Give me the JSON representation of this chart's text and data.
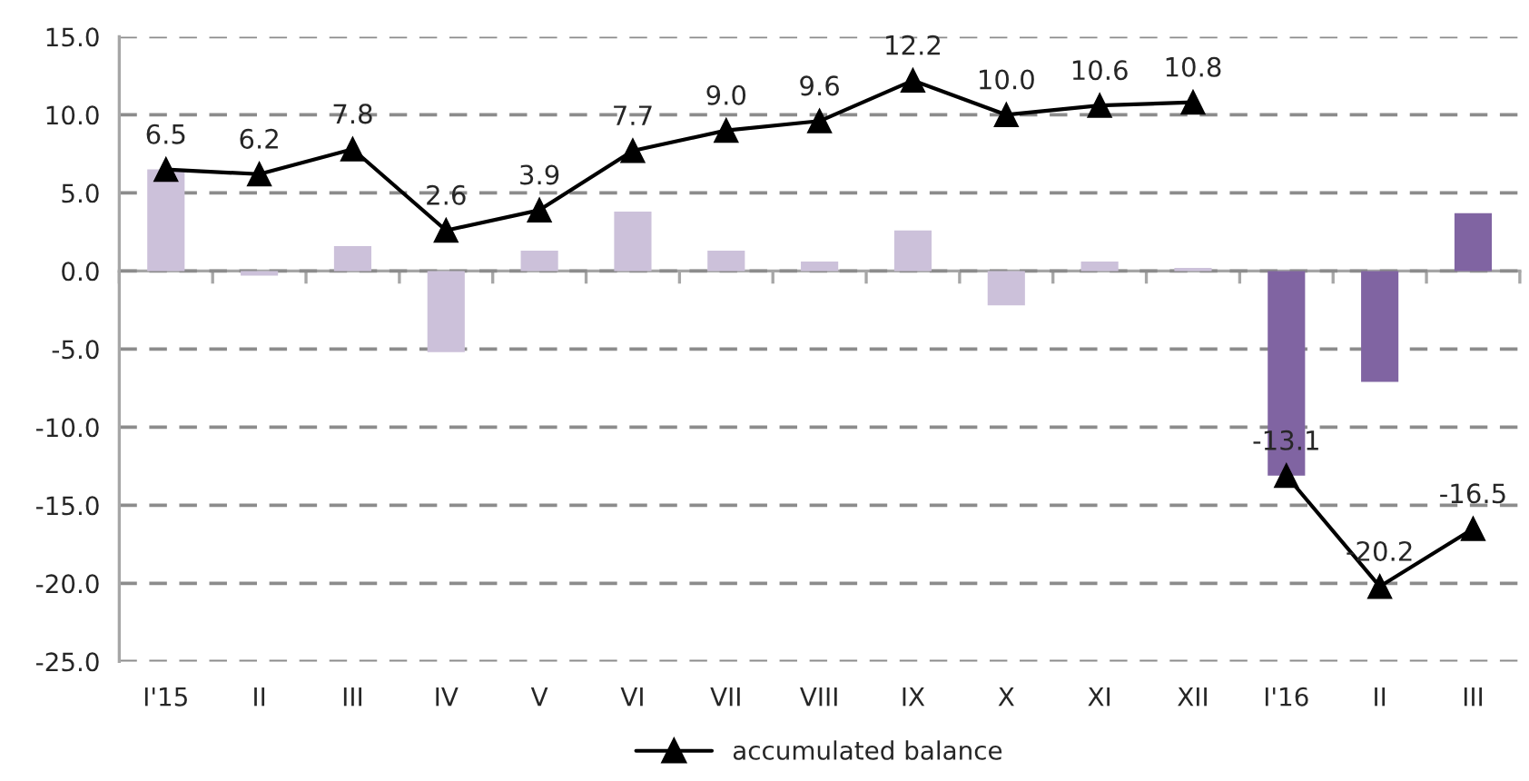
{
  "chart_data": {
    "type": "bar",
    "categories": [
      "I'15",
      "II",
      "III",
      "IV",
      "V",
      "VI",
      "VII",
      "VIII",
      "IX",
      "X",
      "XI",
      "XII",
      "I'16",
      "II",
      "III"
    ],
    "series": [
      {
        "colors": [
          "#ccc1da",
          "#ccc1da",
          "#ccc1da",
          "#ccc1da",
          "#ccc1da",
          "#ccc1da",
          "#ccc1da",
          "#ccc1da",
          "#ccc1da",
          "#ccc1da",
          "#ccc1da",
          "#ccc1da",
          "#8064a2",
          "#8064a2",
          "#8064a2"
        ],
        "values": [
          6.5,
          -0.3,
          1.6,
          -5.2,
          1.3,
          3.8,
          1.3,
          0.6,
          2.6,
          -2.2,
          0.6,
          0.2,
          -13.1,
          -7.1,
          3.7
        ]
      },
      {
        "type": "line",
        "name": "accumulated balance",
        "color": "#000000",
        "values": [
          6.5,
          6.2,
          7.8,
          2.6,
          3.9,
          7.7,
          9.0,
          9.6,
          12.2,
          10.0,
          10.6,
          10.8,
          null,
          null,
          null
        ],
        "value_labels": [
          "6.5",
          "6.2",
          "7.8",
          "2.6",
          "3.9",
          "7.7",
          "9.0",
          "9.6",
          "12.2",
          "10.0",
          "10.6",
          "10.8",
          null,
          null,
          null
        ]
      },
      {
        "type": "line",
        "color": "#000000",
        "values": [
          null,
          null,
          null,
          null,
          null,
          null,
          null,
          null,
          null,
          null,
          null,
          null,
          -13.1,
          -20.2,
          -16.5
        ],
        "value_labels": [
          null,
          null,
          null,
          null,
          null,
          null,
          null,
          null,
          null,
          null,
          null,
          null,
          "-13.1",
          "-20.2",
          "-16.5"
        ]
      }
    ],
    "ylim": [
      -25,
      15
    ],
    "yticks": [
      {
        "value": -25,
        "label": "-25.0"
      },
      {
        "value": -20,
        "label": "-20.0"
      },
      {
        "value": -15,
        "label": "-15.0"
      },
      {
        "value": -10,
        "label": "-10.0"
      },
      {
        "value": -5,
        "label": "-5.0"
      },
      {
        "value": 0,
        "label": "0.0"
      },
      {
        "value": 5,
        "label": "5.0"
      },
      {
        "value": 10,
        "label": "10.0"
      },
      {
        "value": 15,
        "label": "15.0"
      }
    ],
    "grid": "y",
    "legend": "bottom",
    "marker": "triangle",
    "line_style": "solid"
  }
}
